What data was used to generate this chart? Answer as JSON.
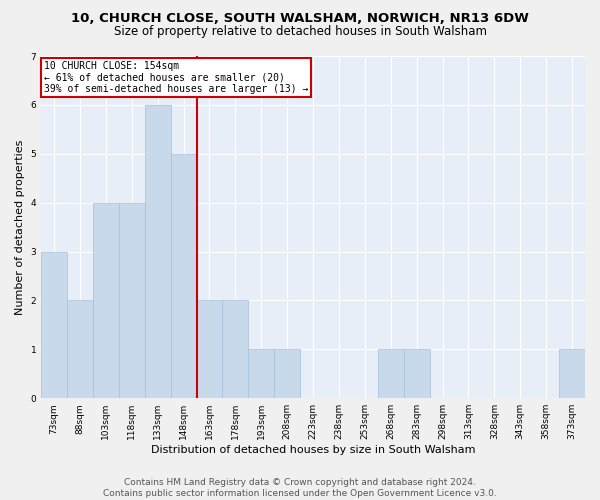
{
  "title1": "10, CHURCH CLOSE, SOUTH WALSHAM, NORWICH, NR13 6DW",
  "title2": "Size of property relative to detached houses in South Walsham",
  "xlabel": "Distribution of detached houses by size in South Walsham",
  "ylabel": "Number of detached properties",
  "categories": [
    "73sqm",
    "88sqm",
    "103sqm",
    "118sqm",
    "133sqm",
    "148sqm",
    "163sqm",
    "178sqm",
    "193sqm",
    "208sqm",
    "223sqm",
    "238sqm",
    "253sqm",
    "268sqm",
    "283sqm",
    "298sqm",
    "313sqm",
    "328sqm",
    "343sqm",
    "358sqm",
    "373sqm"
  ],
  "values": [
    3,
    2,
    4,
    4,
    6,
    5,
    2,
    2,
    1,
    1,
    0,
    0,
    0,
    1,
    1,
    0,
    0,
    0,
    0,
    0,
    1
  ],
  "bar_color": "#c9d9ec",
  "bar_edge_color": "#a8bfd8",
  "ref_line_x": 5.5,
  "ref_line_color": "#cc0000",
  "annotation_line1": "10 CHURCH CLOSE: 154sqm",
  "annotation_line2": "← 61% of detached houses are smaller (20)",
  "annotation_line3": "39% of semi-detached houses are larger (13) →",
  "annotation_box_facecolor": "#ffffff",
  "annotation_box_edgecolor": "#cc0000",
  "ylim": [
    0,
    7
  ],
  "yticks": [
    0,
    1,
    2,
    3,
    4,
    5,
    6,
    7
  ],
  "footer1": "Contains HM Land Registry data © Crown copyright and database right 2024.",
  "footer2": "Contains public sector information licensed under the Open Government Licence v3.0.",
  "fig_facecolor": "#f0f0f0",
  "ax_facecolor": "#e8eef8",
  "grid_color": "#ffffff",
  "title1_fontsize": 9.5,
  "title2_fontsize": 8.5,
  "xlabel_fontsize": 8,
  "ylabel_fontsize": 8,
  "tick_fontsize": 6.5,
  "annotation_fontsize": 7,
  "footer_fontsize": 6.5
}
